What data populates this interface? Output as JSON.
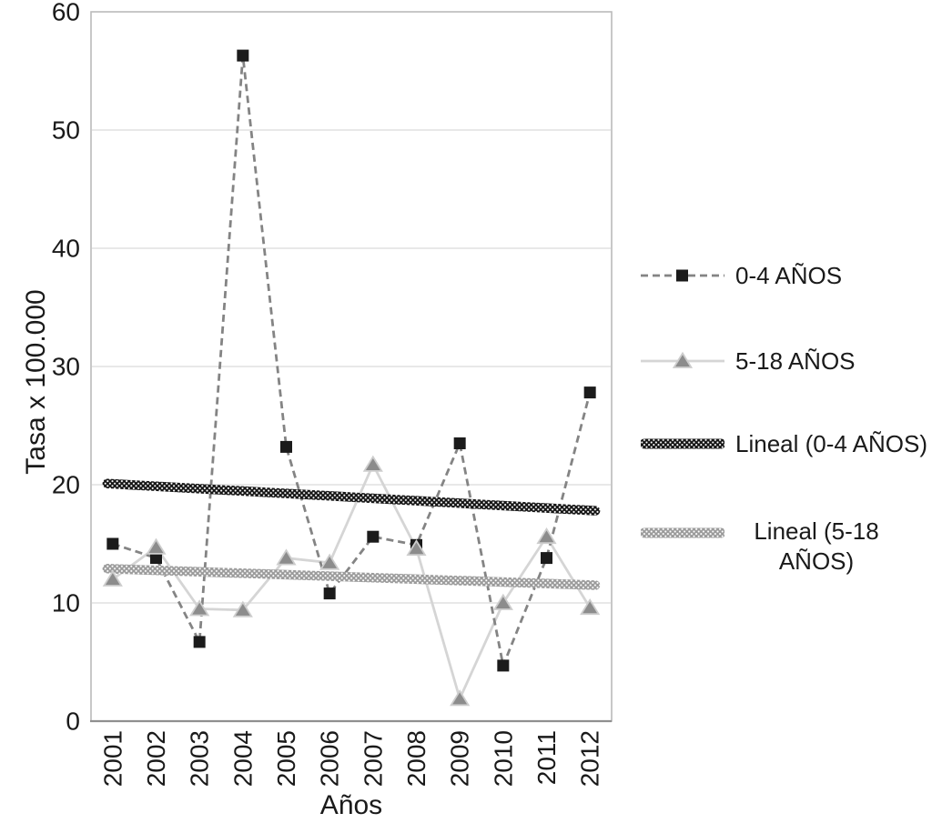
{
  "chart_data": {
    "type": "line",
    "xlabel": "Años",
    "ylabel": "Tasa x 100.000",
    "categories": [
      "2001",
      "2002",
      "2003",
      "2004",
      "2005",
      "2006",
      "2007",
      "2008",
      "2009",
      "2010",
      "2011",
      "2012"
    ],
    "ylim": [
      0,
      60
    ],
    "yticks": [
      0,
      10,
      20,
      30,
      40,
      50,
      60
    ],
    "grid": "horizontal",
    "grid_color": "#dadada",
    "legend_position": "right",
    "series": [
      {
        "name": "0-4 AÑOS",
        "type": "line",
        "line_style": "dashed",
        "marker": "square",
        "line_color": "#848484",
        "marker_color": "#1b1b1b",
        "values": [
          15.0,
          13.8,
          6.7,
          56.3,
          23.2,
          10.8,
          15.6,
          14.9,
          23.5,
          4.7,
          13.8,
          27.8
        ]
      },
      {
        "name": "5-18 AÑOS",
        "type": "line",
        "line_style": "solid",
        "marker": "triangle",
        "line_color": "#d5d5d5",
        "marker_color": "#8c8c8c",
        "values": [
          12.0,
          14.7,
          9.5,
          9.4,
          13.8,
          13.4,
          21.7,
          14.6,
          1.9,
          10.0,
          15.6,
          9.6
        ]
      },
      {
        "name": "Lineal (0-4 AÑOS)",
        "type": "trend",
        "color": "#151515",
        "start_value": 20.1,
        "end_value": 17.8
      },
      {
        "name": "Lineal (5-18 AÑOS)",
        "type": "trend",
        "color": "#9b9b9b",
        "start_value": 12.9,
        "end_value": 11.5
      }
    ]
  },
  "legend": {
    "items": [
      {
        "label": "0-4 AÑOS",
        "symbol": "dashed-line-with-square-marker"
      },
      {
        "label": "5-18 AÑOS",
        "symbol": "solid-line-with-triangle-marker"
      },
      {
        "label": "Lineal (0-4 AÑOS)",
        "symbol": "thick-patterned-black-line"
      },
      {
        "label": "Lineal (5-18 AÑOS)",
        "symbol": "thick-patterned-gray-line"
      }
    ]
  }
}
